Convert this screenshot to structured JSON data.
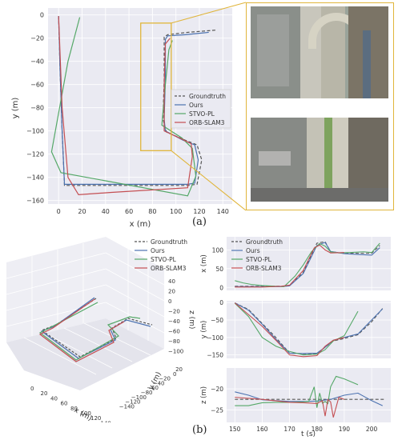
{
  "colors": {
    "panel_bg": "#eaeaf2",
    "groundtruth": "#555555",
    "ours": "#4c72b0",
    "stvo": "#55a868",
    "orb": "#c44e52",
    "highlight": "#e0b53b"
  },
  "legend": [
    "Groundtruth",
    "Ours",
    "STVO-PL",
    "ORB-SLAM3"
  ],
  "labels": {
    "a": "(a)",
    "b": "(b)"
  },
  "chart_data": [
    {
      "id": "top-down-trajectory",
      "type": "line",
      "xlabel": "x (m)",
      "ylabel": "y (m)",
      "xlim": [
        -9,
        148
      ],
      "ylim": [
        -163,
        6
      ],
      "xticks": [
        "0",
        "20",
        "40",
        "60",
        "80",
        "100",
        "120",
        "140"
      ],
      "yticks": [
        "0",
        "−20",
        "−40",
        "−60",
        "−80",
        "−100",
        "−120",
        "−140",
        "−160"
      ],
      "xtick_vals": [
        0,
        20,
        40,
        60,
        80,
        100,
        120,
        140
      ],
      "ytick_vals": [
        0,
        -20,
        -40,
        -60,
        -80,
        -100,
        -120,
        -140,
        -160
      ],
      "legend_position": "center-right",
      "series": [
        {
          "name": "Groundtruth",
          "dashed": true,
          "x": [
            0,
            1,
            3,
            5,
            40,
            80,
            110,
            118,
            122,
            118,
            108,
            92,
            89,
            90,
            90,
            93,
            110,
            135
          ],
          "y": [
            -1,
            -40,
            -100,
            -147,
            -147,
            -147,
            -147,
            -146,
            -125,
            -112,
            -108,
            -101,
            -90,
            -55,
            -19,
            -17,
            -15,
            -13
          ]
        },
        {
          "name": "Ours",
          "dashed": false,
          "x": [
            0,
            1,
            3,
            5,
            40,
            80,
            110,
            116,
            119,
            116,
            106,
            91,
            90,
            91,
            91,
            93,
            108,
            128
          ],
          "y": [
            -1,
            -40,
            -100,
            -146,
            -146,
            -146,
            -146,
            -145,
            -125,
            -112,
            -108,
            -100,
            -90,
            -55,
            -21,
            -18,
            -17,
            -15
          ]
        },
        {
          "name": "STVO-PL",
          "dashed": false,
          "x": [
            18,
            8,
            -6,
            2,
            40,
            110,
            117,
            114,
            105,
            88,
            91,
            94,
            97
          ],
          "y": [
            -2,
            -40,
            -118,
            -136,
            -143,
            -156,
            -139,
            -115,
            -106,
            -95,
            -60,
            -30,
            -22
          ]
        },
        {
          "name": "ORB-SLAM3",
          "dashed": false,
          "x": [
            0,
            3,
            8,
            17,
            45,
            110,
            114,
            113,
            105,
            90,
            90,
            91,
            95
          ],
          "y": [
            -1,
            -80,
            -140,
            -155,
            -153,
            -149,
            -122,
            -111,
            -107,
            -100,
            -60,
            -25,
            -20
          ]
        }
      ],
      "highlight_box": {
        "x": [
          70,
          96
        ],
        "y": [
          -117,
          -7
        ]
      }
    },
    {
      "id": "3d-trajectory",
      "type": "line",
      "xlabel": "x (m)",
      "ylabel": "y (m)",
      "zlabel": "z (m)",
      "xticks": [
        "0",
        "20",
        "40",
        "60",
        "80",
        "100",
        "120",
        "140"
      ],
      "yticks": [
        "20",
        "0",
        "−20",
        "−40",
        "−60",
        "−80",
        "−100",
        "−120",
        "−140"
      ],
      "zticks": [
        "40",
        "20",
        "0",
        "−20",
        "−40",
        "−60",
        "−80",
        "−100"
      ],
      "legend_position": "top-right",
      "series": [
        {
          "name": "Groundtruth"
        },
        {
          "name": "Ours"
        },
        {
          "name": "STVO-PL"
        },
        {
          "name": "ORB-SLAM3"
        }
      ]
    },
    {
      "id": "x-vs-time",
      "type": "line",
      "ylabel": "x (m)",
      "xlim": [
        147,
        207
      ],
      "ylim": [
        -8,
        135
      ],
      "yticks": [
        "0",
        "50",
        "100"
      ],
      "ytick_vals": [
        0,
        50,
        100
      ],
      "legend_position": "top-left",
      "series": [
        {
          "name": "Groundtruth",
          "dashed": true,
          "t": [
            150,
            160,
            167,
            170,
            175,
            180,
            183,
            185,
            190,
            195,
            200,
            203
          ],
          "v": [
            3,
            3,
            3,
            5,
            40,
            118,
            122,
            95,
            91,
            91,
            91,
            112
          ]
        },
        {
          "name": "Ours",
          "t": [
            150,
            160,
            167,
            170,
            175,
            180,
            183,
            185,
            190,
            195,
            200,
            203
          ],
          "v": [
            2,
            2,
            2,
            4,
            37,
            112,
            120,
            96,
            90,
            88,
            86,
            106
          ]
        },
        {
          "name": "STVO-PL",
          "t": [
            150,
            153,
            156,
            160,
            165,
            168,
            172,
            175,
            178,
            181,
            183,
            185,
            188,
            192,
            197,
            200,
            203
          ],
          "v": [
            18,
            12,
            8,
            5,
            3,
            2,
            30,
            60,
            95,
            117,
            110,
            95,
            92,
            93,
            95,
            93,
            118
          ]
        },
        {
          "name": "ORB-SLAM3",
          "t": [
            150,
            160,
            167,
            170,
            175,
            179,
            181,
            183,
            185,
            190
          ],
          "v": [
            1,
            1,
            3,
            6,
            45,
            105,
            113,
            100,
            92,
            93
          ]
        }
      ]
    },
    {
      "id": "y-vs-time",
      "type": "line",
      "ylabel": "y (m)",
      "xlim": [
        147,
        207
      ],
      "ylim": [
        -160,
        5
      ],
      "yticks": [
        "0",
        "−50",
        "−100",
        "−150"
      ],
      "ytick_vals": [
        0,
        -50,
        -100,
        -150
      ],
      "series": [
        {
          "name": "Groundtruth",
          "dashed": true,
          "t": [
            150,
            155,
            160,
            165,
            170,
            175,
            180,
            183,
            186,
            190,
            195,
            200,
            204
          ],
          "v": [
            -1,
            -20,
            -60,
            -100,
            -145,
            -147,
            -146,
            -128,
            -110,
            -103,
            -92,
            -55,
            -17
          ]
        },
        {
          "name": "Ours",
          "t": [
            150,
            155,
            160,
            165,
            170,
            175,
            180,
            183,
            186,
            190,
            195,
            200,
            204
          ],
          "v": [
            -1,
            -22,
            -62,
            -105,
            -145,
            -146,
            -145,
            -128,
            -108,
            -100,
            -90,
            -50,
            -18
          ]
        },
        {
          "name": "STVO-PL",
          "t": [
            150,
            155,
            160,
            165,
            170,
            175,
            180,
            183,
            186,
            190,
            195
          ],
          "v": [
            -2,
            -40,
            -100,
            -125,
            -140,
            -150,
            -148,
            -135,
            -110,
            -95,
            -25
          ]
        },
        {
          "name": "ORB-SLAM3",
          "t": [
            150,
            160,
            165,
            170,
            175,
            180,
            183,
            186,
            190
          ],
          "v": [
            -1,
            -68,
            -108,
            -150,
            -155,
            -152,
            -125,
            -108,
            -100
          ]
        }
      ]
    },
    {
      "id": "z-vs-time",
      "type": "line",
      "xlabel": "t (s)",
      "ylabel": "z (m)",
      "xlim": [
        147,
        207
      ],
      "ylim": [
        -28,
        -15
      ],
      "xticks": [
        "150",
        "160",
        "170",
        "180",
        "190",
        "200"
      ],
      "xtick_vals": [
        150,
        160,
        170,
        180,
        190,
        200
      ],
      "yticks": [
        "−20",
        "−25"
      ],
      "ytick_vals": [
        -20,
        -25
      ],
      "series": [
        {
          "name": "Groundtruth",
          "dashed": true,
          "t": [
            150,
            205
          ],
          "v": [
            -22.5,
            -22.5
          ]
        },
        {
          "name": "Ours",
          "t": [
            150,
            155,
            160,
            165,
            170,
            175,
            180,
            185,
            190,
            195,
            200,
            204
          ],
          "v": [
            -20.7,
            -21.5,
            -22.6,
            -22.8,
            -23.0,
            -23.0,
            -22.9,
            -22.5,
            -21.5,
            -21.0,
            -22.8,
            -24.0
          ]
        },
        {
          "name": "STVO-PL",
          "t": [
            150,
            155,
            160,
            165,
            170,
            175,
            177,
            179,
            180,
            181,
            182,
            183,
            184,
            185,
            187,
            190,
            195
          ],
          "v": [
            -24.0,
            -24.0,
            -23.3,
            -23.2,
            -23.2,
            -23.1,
            -23.0,
            -19.5,
            -24.5,
            -21.0,
            -23.4,
            -23.0,
            -23.5,
            -19.5,
            -17.0,
            -17.6,
            -19.0
          ]
        },
        {
          "name": "ORB-SLAM3",
          "t": [
            150,
            160,
            170,
            175,
            178,
            180,
            182,
            183,
            184,
            185,
            186,
            188,
            190
          ],
          "v": [
            -22.0,
            -22.5,
            -23.2,
            -23.3,
            -23.4,
            -23.5,
            -22.8,
            -26.5,
            -22.5,
            -23.1,
            -26.8,
            -22.0,
            -22.5
          ]
        }
      ]
    }
  ]
}
